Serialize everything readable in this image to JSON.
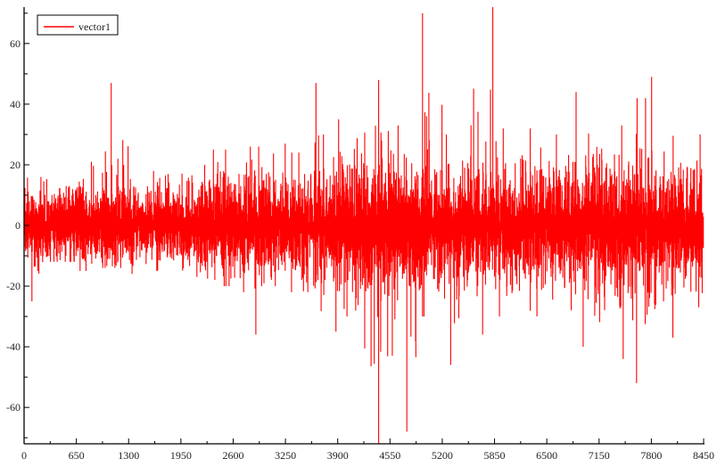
{
  "chart_data": {
    "type": "line",
    "title": "",
    "xlabel": "",
    "ylabel": "",
    "xlim": [
      0,
      8450
    ],
    "ylim": [
      -72,
      72
    ],
    "x_ticks": [
      0,
      650,
      1300,
      1950,
      2600,
      3250,
      3900,
      4550,
      5200,
      5850,
      6500,
      7150,
      7800,
      8450
    ],
    "y_ticks": [
      -60,
      -40,
      -20,
      0,
      20,
      40,
      60
    ],
    "grid": false,
    "legend": {
      "position": "top-left"
    },
    "series": [
      {
        "name": "vector1",
        "color": "#ff0000",
        "bin_width": 325,
        "bin_max": [
          16,
          13,
          21,
          47,
          18,
          17,
          20,
          25,
          26,
          27,
          24,
          47,
          35,
          48,
          33,
          70,
          30,
          72,
          32,
          32,
          30,
          44,
          33,
          42,
          49,
          30
        ],
        "bin_min": [
          -25,
          -12,
          -15,
          -14,
          -16,
          -15,
          -17,
          -20,
          -36,
          -20,
          -22,
          -35,
          -30,
          -72,
          -68,
          -30,
          -46,
          -36,
          -30,
          -30,
          -28,
          -40,
          -44,
          -52,
          -37,
          -27
        ],
        "typical_amplitude": [
          6,
          6,
          6,
          7,
          6,
          6,
          7,
          8,
          8,
          8,
          8,
          9,
          11,
          12,
          10,
          10,
          9,
          10,
          9,
          9,
          9,
          10,
          10,
          10,
          10,
          9
        ]
      }
    ]
  }
}
